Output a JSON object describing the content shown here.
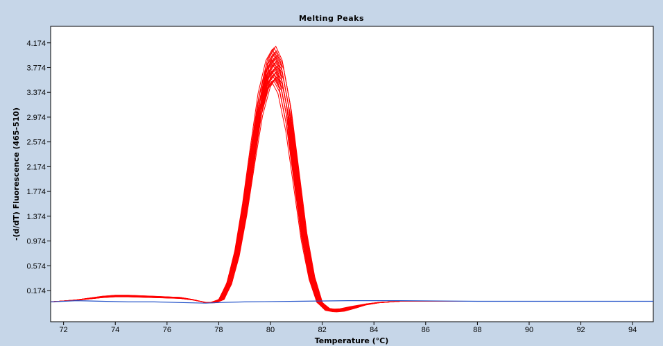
{
  "chart_data": {
    "type": "line",
    "title": "Melting Peaks",
    "xlabel": "Temperature (°C)",
    "ylabel": "-(d/dT) Fluorescence (465-510)",
    "xlim": [
      71.5,
      94.8
    ],
    "ylim": [
      -0.33,
      4.44
    ],
    "x_ticks": [
      72,
      74,
      76,
      78,
      80,
      82,
      84,
      86,
      88,
      90,
      92,
      94
    ],
    "y_ticks": [
      0.174,
      0.574,
      0.974,
      1.374,
      1.774,
      2.174,
      2.574,
      2.974,
      3.374,
      3.774,
      4.174
    ],
    "grid": false,
    "legend": "none",
    "colors": {
      "sample": "#ff0000",
      "baseline": "#2050c8",
      "frame_bg": "#c6d6e8",
      "plot_bg": "#ffffff"
    },
    "series_groups": [
      {
        "color": "#ff0000",
        "count": 24,
        "peak_temperature_c": 80.15,
        "peak_height_range": [
          3.55,
          4.12
        ],
        "template": {
          "x": [
            71.5,
            72.5,
            73.5,
            74.0,
            74.5,
            75.5,
            76.5,
            77.0,
            77.5,
            77.8,
            78.1,
            78.4,
            78.7,
            79.0,
            79.3,
            79.6,
            79.9,
            80.15,
            80.4,
            80.7,
            81.0,
            81.3,
            81.6,
            81.9,
            82.2,
            82.5,
            82.8,
            83.2,
            83.7,
            84.2,
            85.0,
            86.0,
            88.0,
            90.0,
            92.0,
            94.8
          ],
          "y": [
            -0.01,
            0.02,
            0.07,
            0.085,
            0.085,
            0.07,
            0.055,
            0.025,
            -0.02,
            -0.02,
            0.03,
            0.3,
            0.8,
            1.55,
            2.45,
            3.3,
            3.82,
            4.0,
            3.78,
            3.1,
            2.1,
            1.1,
            0.4,
            -0.02,
            -0.13,
            -0.15,
            -0.14,
            -0.1,
            -0.05,
            -0.02,
            0.0,
            0.0,
            0.0,
            0.0,
            0.0,
            0.0
          ]
        }
      },
      {
        "color": "#2050c8",
        "count": 1,
        "x": [
          71.5,
          72.5,
          73.5,
          74.5,
          75.5,
          76.5,
          77.5,
          78.0,
          79.0,
          81.0,
          83.0,
          85.0,
          88.0,
          91.0,
          94.8
        ],
        "y": [
          -0.01,
          0.01,
          0.0,
          -0.01,
          -0.01,
          -0.02,
          -0.03,
          -0.02,
          -0.01,
          0.0,
          0.01,
          0.01,
          0.0,
          0.0,
          0.0
        ]
      }
    ]
  }
}
